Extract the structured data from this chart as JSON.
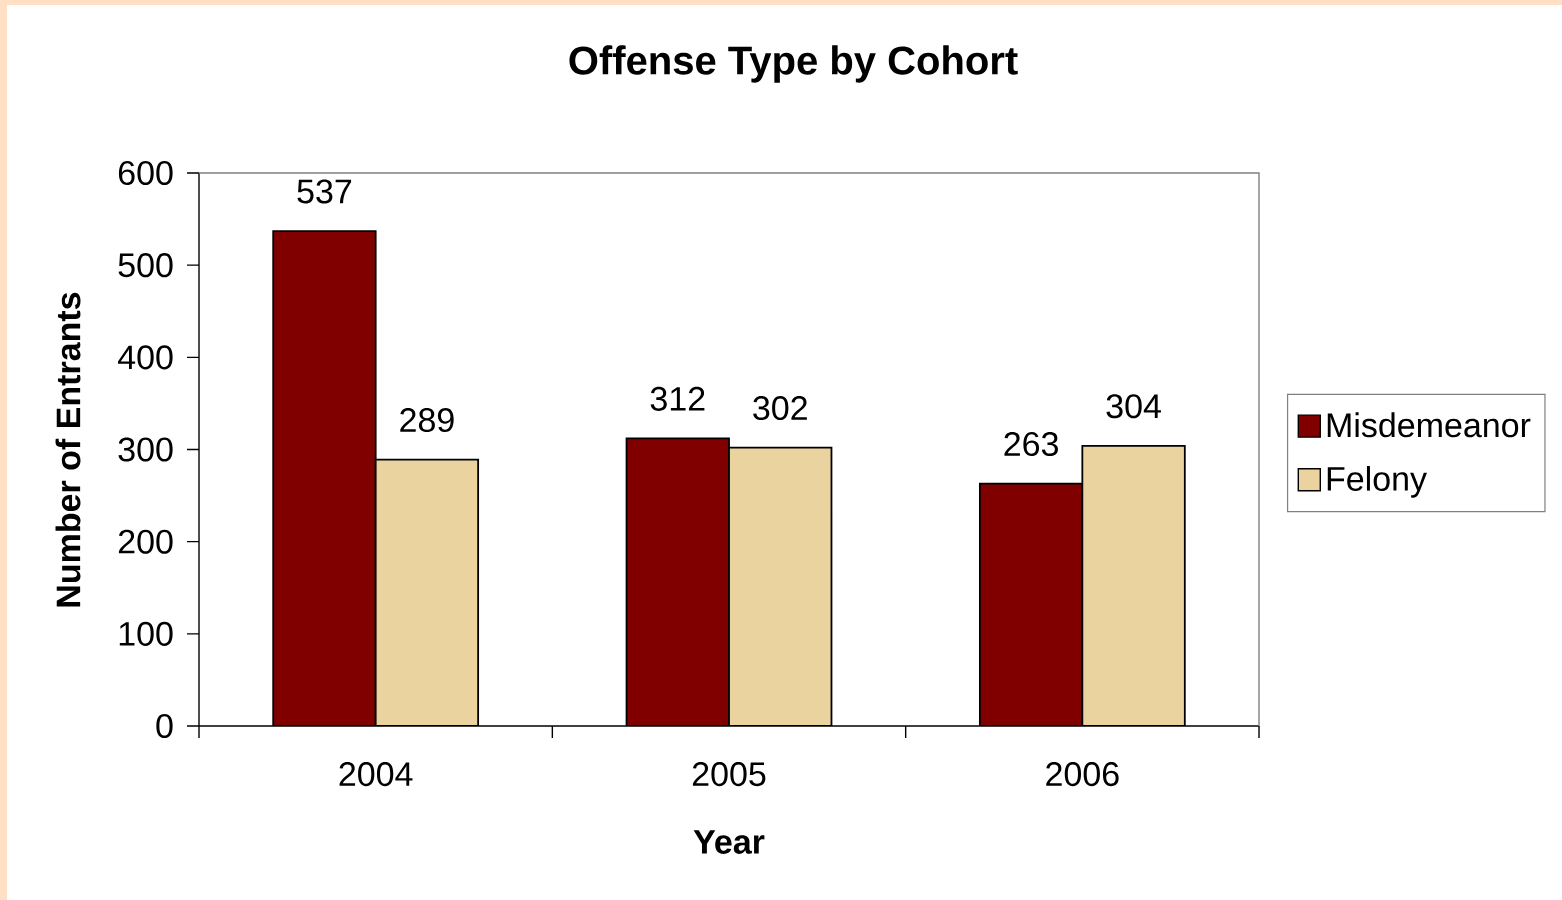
{
  "chart_data": {
    "type": "bar",
    "title": "Offense Type by Cohort",
    "xlabel": "Year",
    "ylabel": "Number of Entrants",
    "categories": [
      "2004",
      "2005",
      "2006"
    ],
    "series": [
      {
        "name": "Misdemeanor",
        "color": "#800000",
        "values": [
          537,
          312,
          263
        ]
      },
      {
        "name": "Felony",
        "color": "#EAD39E",
        "values": [
          289,
          302,
          304
        ]
      }
    ],
    "ylim": [
      0,
      600
    ],
    "yticks": [
      0,
      100,
      200,
      300,
      400,
      500,
      600
    ],
    "data_labels": true,
    "legend": "right"
  }
}
